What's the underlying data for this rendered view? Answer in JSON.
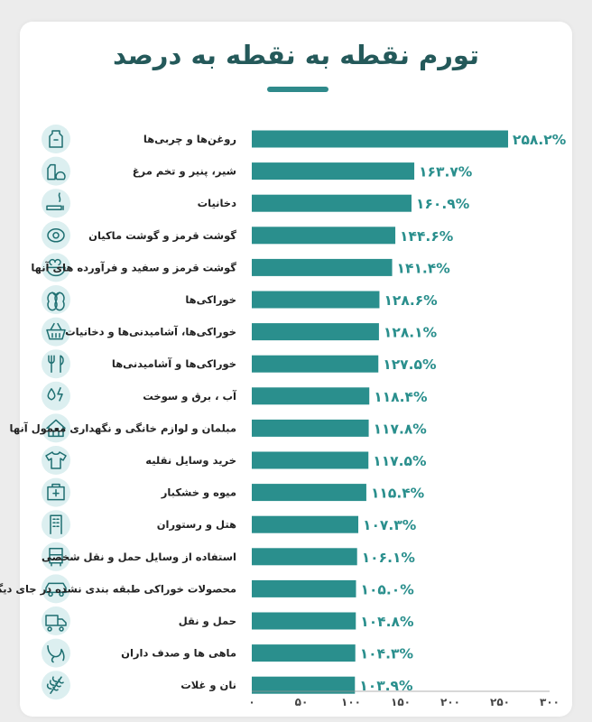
{
  "title": "تورم نقطه به نقطه به درصد",
  "colors": {
    "bar": "#2a8f8d",
    "value_text": "#2a8f8d",
    "label_text": "#222222",
    "icon_bg": "#dceff0",
    "icon_stroke": "#1e6f71",
    "tick_text": "#444444",
    "axis": "#999999",
    "title": "#24595a"
  },
  "chart_data": {
    "type": "bar",
    "orientation": "horizontal",
    "xlim": [
      0,
      300
    ],
    "x_ticks": [
      "۰",
      "۵۰",
      "۱۰۰",
      "۱۵۰",
      "۲۰۰",
      "۲۵۰",
      "۳۰۰"
    ],
    "x_tick_values": [
      0,
      50,
      100,
      150,
      200,
      250,
      300
    ],
    "grid": false,
    "categories": [
      "روغن‌ها و چربی‌ها",
      "شیر، پنیر و تخم مرغ",
      "دخانیات",
      "گوشت قرمز و گوشت ماکیان",
      "گوشت قرمز و سفید و فرآورده های آنها",
      "خوراکی‌ها",
      "خوراکی‌ها، آشامیدنی‌ها و دخانیات",
      "خوراکی‌ها و آشامیدنی‌ها",
      "آب ، برق و سوخت",
      "مبلمان و لوازم خانگی و نگهداری معمول آنها",
      "خرید وسایل نقلیه",
      "میوه و خشکبار",
      "هتل و رستوران",
      "استفاده از وسایل حمل و نقل شخصی",
      "محصولات خوراکی طبقه بندی نشده در جای دیگر",
      "حمل و نقل",
      "ماهی ها و صدف داران",
      "نان و غلات"
    ],
    "values": [
      258.2,
      163.7,
      160.9,
      144.6,
      141.4,
      128.6,
      128.1,
      127.5,
      118.4,
      117.8,
      117.5,
      115.4,
      107.3,
      106.1,
      105.0,
      104.8,
      104.3,
      103.9
    ],
    "value_labels": [
      "۲۵۸.۲%",
      "۱۶۳.۷%",
      "۱۶۰.۹%",
      "۱۴۴.۶%",
      "۱۴۱.۴%",
      "۱۲۸.۶%",
      "۱۲۸.۱%",
      "۱۲۷.۵%",
      "۱۱۸.۴%",
      "۱۱۷.۸%",
      "۱۱۷.۵%",
      "۱۱۵.۴%",
      "۱۰۷.۳%",
      "۱۰۶.۱%",
      "۱۰۵.۰%",
      "۱۰۴.۸%",
      "۱۰۴.۳%",
      "۱۰۳.۹%"
    ],
    "icons": [
      "oil-bottle-icon",
      "dairy-icon",
      "tobacco-icon",
      "meat-icon",
      "food-bowl-icon",
      "vegetables-icon",
      "shopping-basket-icon",
      "cutlery-icon",
      "utilities-icon",
      "house-icon",
      "shirt-icon",
      "fruit-box-icon",
      "hotel-building-icon",
      "bus-icon",
      "car-icon",
      "truck-icon",
      "fish-icon",
      "wheat-icon"
    ]
  }
}
